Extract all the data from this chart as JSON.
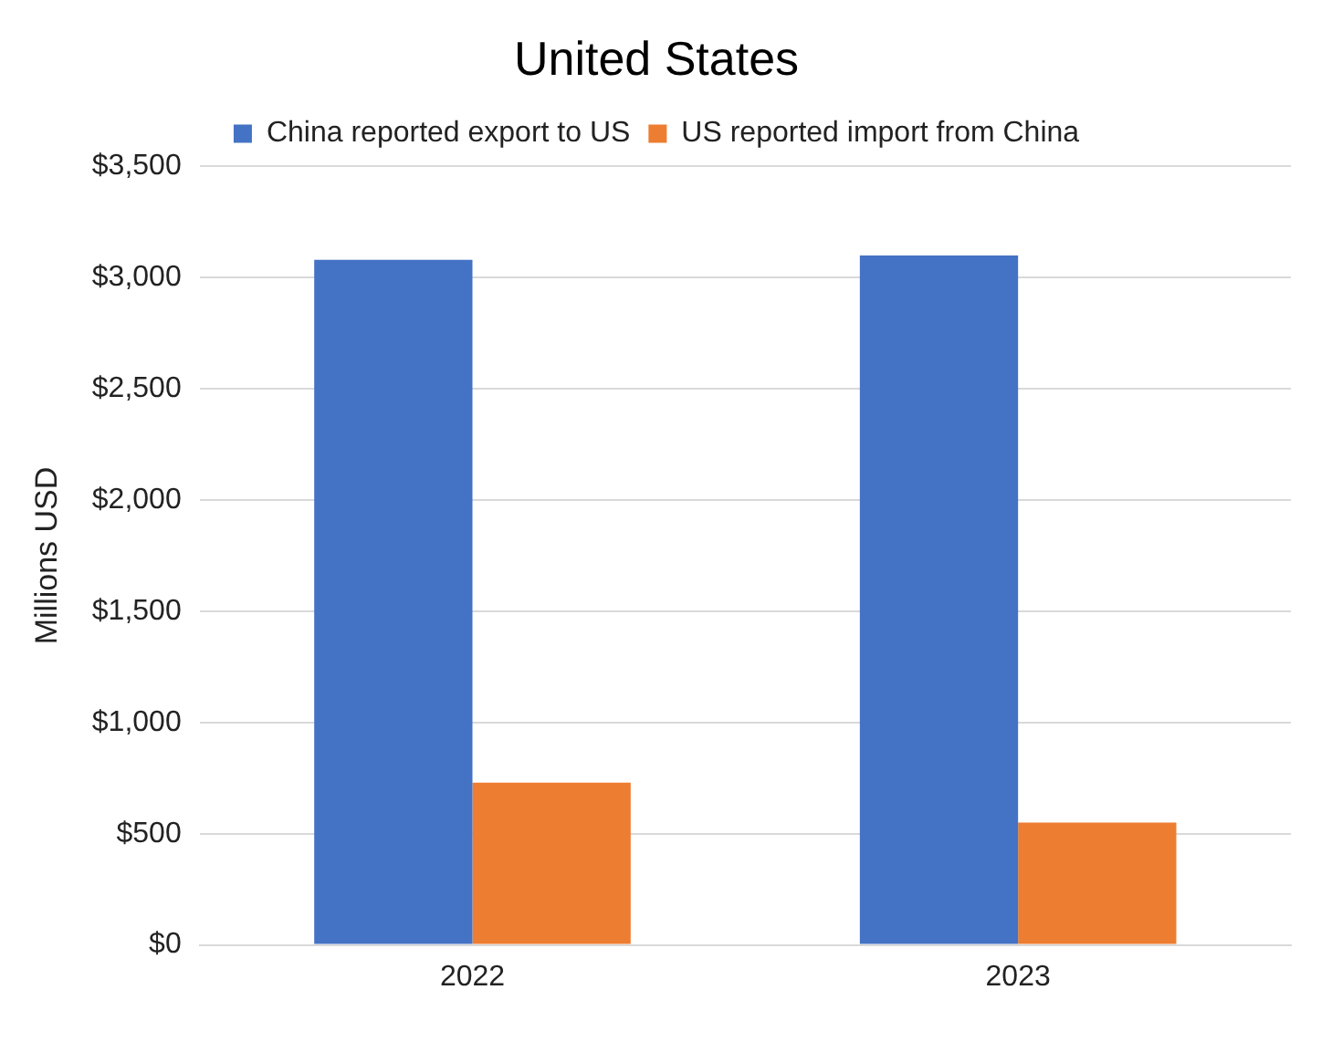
{
  "chart_data": {
    "type": "bar",
    "title": "United States",
    "ylabel": "Millions USD",
    "categories": [
      "2022",
      "2023"
    ],
    "series": [
      {
        "name": "China reported export to US",
        "color": "#4472c4",
        "values": [
          3080,
          3100
        ]
      },
      {
        "name": "US reported import from China",
        "color": "#ed7d31",
        "values": [
          730,
          550
        ]
      }
    ],
    "ylim": [
      0,
      3500
    ],
    "yticks": [
      {
        "value": 0,
        "label": "$0"
      },
      {
        "value": 500,
        "label": "$500"
      },
      {
        "value": 1000,
        "label": "$1,000"
      },
      {
        "value": 1500,
        "label": "$1,500"
      },
      {
        "value": 2000,
        "label": "$2,000"
      },
      {
        "value": 2500,
        "label": "$2,500"
      },
      {
        "value": 3000,
        "label": "$3,000"
      },
      {
        "value": 3500,
        "label": "$3,500"
      }
    ],
    "grid": "y",
    "legend": "top"
  }
}
